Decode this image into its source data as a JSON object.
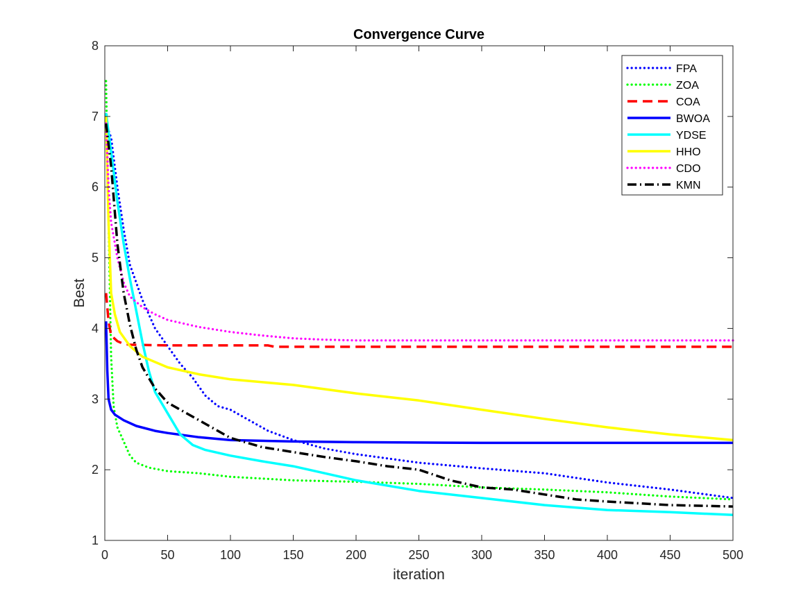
{
  "chart_data": {
    "type": "line",
    "title": "Convergence Curve",
    "xlabel": "iteration",
    "ylabel": "Best",
    "xlim": [
      0,
      500
    ],
    "ylim": [
      1,
      8
    ],
    "xticks": [
      0,
      50,
      100,
      150,
      200,
      250,
      300,
      350,
      400,
      450,
      500
    ],
    "yticks": [
      1,
      2,
      3,
      4,
      5,
      6,
      7,
      8
    ],
    "grid": false,
    "legend_position": "top-right",
    "series": [
      {
        "name": "FPA",
        "color": "#0000ff",
        "style": "dotted",
        "points": [
          [
            1,
            6.9
          ],
          [
            5,
            6.7
          ],
          [
            10,
            6.0
          ],
          [
            15,
            5.4
          ],
          [
            20,
            4.9
          ],
          [
            30,
            4.4
          ],
          [
            40,
            4.0
          ],
          [
            50,
            3.75
          ],
          [
            60,
            3.5
          ],
          [
            70,
            3.3
          ],
          [
            80,
            3.05
          ],
          [
            90,
            2.9
          ],
          [
            100,
            2.85
          ],
          [
            110,
            2.75
          ],
          [
            120,
            2.65
          ],
          [
            130,
            2.55
          ],
          [
            150,
            2.42
          ],
          [
            175,
            2.3
          ],
          [
            200,
            2.22
          ],
          [
            250,
            2.1
          ],
          [
            300,
            2.02
          ],
          [
            350,
            1.95
          ],
          [
            400,
            1.82
          ],
          [
            450,
            1.72
          ],
          [
            500,
            1.6
          ]
        ]
      },
      {
        "name": "ZOA",
        "color": "#00ff00",
        "style": "dotted",
        "points": [
          [
            1,
            7.5
          ],
          [
            3,
            5.5
          ],
          [
            5,
            3.6
          ],
          [
            7,
            2.9
          ],
          [
            10,
            2.6
          ],
          [
            15,
            2.4
          ],
          [
            20,
            2.2
          ],
          [
            25,
            2.1
          ],
          [
            35,
            2.03
          ],
          [
            50,
            1.98
          ],
          [
            75,
            1.95
          ],
          [
            100,
            1.9
          ],
          [
            150,
            1.85
          ],
          [
            200,
            1.83
          ],
          [
            250,
            1.8
          ],
          [
            300,
            1.75
          ],
          [
            350,
            1.72
          ],
          [
            400,
            1.68
          ],
          [
            450,
            1.62
          ],
          [
            500,
            1.58
          ]
        ]
      },
      {
        "name": "COA",
        "color": "#ff0000",
        "style": "dashed",
        "points": [
          [
            1,
            4.5
          ],
          [
            3,
            4.1
          ],
          [
            5,
            3.9
          ],
          [
            10,
            3.82
          ],
          [
            15,
            3.78
          ],
          [
            20,
            3.77
          ],
          [
            50,
            3.76
          ],
          [
            100,
            3.76
          ],
          [
            130,
            3.76
          ],
          [
            135,
            3.74
          ],
          [
            200,
            3.74
          ],
          [
            300,
            3.74
          ],
          [
            400,
            3.74
          ],
          [
            500,
            3.74
          ]
        ]
      },
      {
        "name": "BWOA",
        "color": "#0000ff",
        "style": "solid",
        "points": [
          [
            1,
            4.1
          ],
          [
            2,
            3.4
          ],
          [
            3,
            3.0
          ],
          [
            5,
            2.85
          ],
          [
            8,
            2.78
          ],
          [
            15,
            2.7
          ],
          [
            25,
            2.62
          ],
          [
            40,
            2.55
          ],
          [
            50,
            2.52
          ],
          [
            75,
            2.46
          ],
          [
            100,
            2.42
          ],
          [
            150,
            2.4
          ],
          [
            200,
            2.39
          ],
          [
            300,
            2.38
          ],
          [
            400,
            2.38
          ],
          [
            500,
            2.38
          ]
        ]
      },
      {
        "name": "YDSE",
        "color": "#00ffff",
        "style": "solid",
        "points": [
          [
            1,
            7.05
          ],
          [
            5,
            6.5
          ],
          [
            10,
            5.8
          ],
          [
            15,
            5.2
          ],
          [
            20,
            4.7
          ],
          [
            25,
            4.25
          ],
          [
            30,
            3.8
          ],
          [
            35,
            3.4
          ],
          [
            40,
            3.1
          ],
          [
            50,
            2.8
          ],
          [
            60,
            2.5
          ],
          [
            70,
            2.35
          ],
          [
            80,
            2.28
          ],
          [
            100,
            2.2
          ],
          [
            125,
            2.12
          ],
          [
            150,
            2.05
          ],
          [
            175,
            1.95
          ],
          [
            200,
            1.85
          ],
          [
            250,
            1.7
          ],
          [
            300,
            1.6
          ],
          [
            350,
            1.5
          ],
          [
            400,
            1.43
          ],
          [
            450,
            1.4
          ],
          [
            500,
            1.36
          ]
        ]
      },
      {
        "name": "HHO",
        "color": "#ffff00",
        "style": "solid",
        "points": [
          [
            1,
            7.0
          ],
          [
            3,
            5.5
          ],
          [
            5,
            4.5
          ],
          [
            8,
            4.2
          ],
          [
            12,
            3.95
          ],
          [
            20,
            3.75
          ],
          [
            30,
            3.6
          ],
          [
            50,
            3.45
          ],
          [
            75,
            3.35
          ],
          [
            100,
            3.28
          ],
          [
            150,
            3.2
          ],
          [
            200,
            3.08
          ],
          [
            250,
            2.98
          ],
          [
            300,
            2.85
          ],
          [
            350,
            2.72
          ],
          [
            400,
            2.6
          ],
          [
            450,
            2.5
          ],
          [
            500,
            2.42
          ]
        ]
      },
      {
        "name": "CDO",
        "color": "#ff00ff",
        "style": "dotted",
        "points": [
          [
            1,
            6.9
          ],
          [
            3,
            6.0
          ],
          [
            5,
            5.5
          ],
          [
            10,
            5.0
          ],
          [
            15,
            4.65
          ],
          [
            20,
            4.45
          ],
          [
            30,
            4.3
          ],
          [
            40,
            4.2
          ],
          [
            50,
            4.12
          ],
          [
            75,
            4.02
          ],
          [
            100,
            3.95
          ],
          [
            125,
            3.9
          ],
          [
            150,
            3.86
          ],
          [
            175,
            3.84
          ],
          [
            200,
            3.83
          ],
          [
            300,
            3.83
          ],
          [
            400,
            3.83
          ],
          [
            500,
            3.83
          ]
        ]
      },
      {
        "name": "KMN",
        "color": "#000000",
        "style": "dashdot",
        "points": [
          [
            1,
            6.9
          ],
          [
            5,
            6.3
          ],
          [
            10,
            5.2
          ],
          [
            15,
            4.5
          ],
          [
            20,
            4.05
          ],
          [
            25,
            3.7
          ],
          [
            30,
            3.45
          ],
          [
            40,
            3.15
          ],
          [
            50,
            2.95
          ],
          [
            60,
            2.85
          ],
          [
            75,
            2.7
          ],
          [
            100,
            2.45
          ],
          [
            125,
            2.32
          ],
          [
            150,
            2.25
          ],
          [
            175,
            2.18
          ],
          [
            200,
            2.12
          ],
          [
            225,
            2.05
          ],
          [
            250,
            2.0
          ],
          [
            275,
            1.85
          ],
          [
            300,
            1.75
          ],
          [
            325,
            1.72
          ],
          [
            350,
            1.65
          ],
          [
            375,
            1.58
          ],
          [
            400,
            1.55
          ],
          [
            450,
            1.5
          ],
          [
            500,
            1.48
          ]
        ]
      }
    ]
  }
}
